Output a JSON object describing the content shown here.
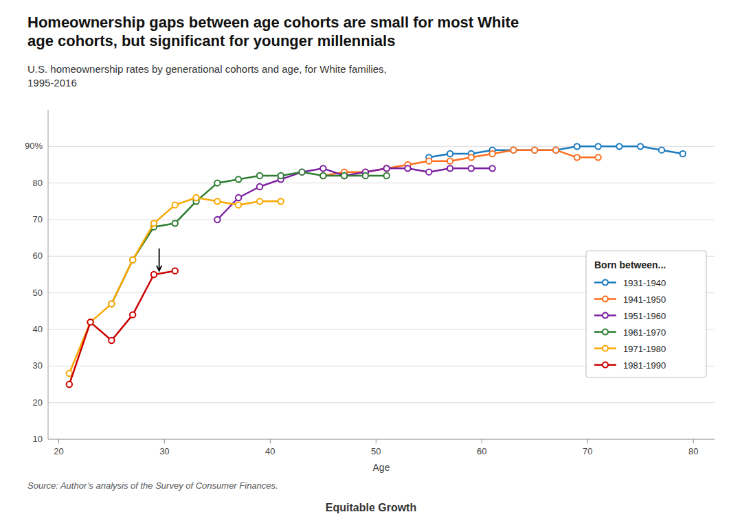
{
  "chart_data": {
    "type": "line",
    "title": "Homeownership gaps between age cohorts are small for most White\nage cohorts, but significant for younger millennials",
    "subtitle": "U.S. homeownership rates by generational cohorts and age, for White families,\n1995-2016",
    "xlabel": "Age",
    "source": "Source: Author’s analysis of the Survey of Consumer Finances.",
    "logo": "Equitable Growth",
    "legend_title": "Born between...",
    "legend": "right",
    "grid": true,
    "marker": "circle",
    "series": [
      {
        "name": "1931-1940",
        "color": "#1a7abf",
        "x": [
          55,
          57,
          59,
          61,
          63,
          65,
          67,
          69,
          71,
          73,
          75,
          77,
          79
        ],
        "values": [
          87,
          88,
          88,
          89,
          89,
          89,
          89,
          90,
          90,
          90,
          90,
          89,
          88
        ]
      },
      {
        "name": "1941-1950",
        "color": "#ff6e1f",
        "x": [
          45,
          47,
          49,
          51,
          53,
          55,
          57,
          59,
          61,
          63,
          65,
          67,
          69,
          71
        ],
        "values": [
          82,
          83,
          83,
          84,
          85,
          86,
          86,
          87,
          88,
          89,
          89,
          89,
          87,
          87
        ]
      },
      {
        "name": "1951-1960",
        "color": "#7b1fa2",
        "x": [
          35,
          37,
          39,
          41,
          43,
          45,
          47,
          49,
          51,
          53,
          55,
          57,
          59,
          61
        ],
        "values": [
          70,
          76,
          79,
          81,
          83,
          84,
          82,
          83,
          84,
          84,
          83,
          84,
          84,
          84
        ]
      },
      {
        "name": "1961-1970",
        "color": "#2e7d32",
        "x": [
          25,
          27,
          29,
          31,
          33,
          35,
          37,
          39,
          41,
          43,
          45,
          47,
          49,
          51
        ],
        "values": [
          47,
          59,
          68,
          69,
          75,
          80,
          81,
          82,
          82,
          83,
          82,
          82,
          82,
          82
        ]
      },
      {
        "name": "1971-1980",
        "color": "#f9a800",
        "x": [
          21,
          23,
          25,
          27,
          29,
          31,
          33,
          35,
          37,
          39,
          41
        ],
        "values": [
          28,
          42,
          47,
          59,
          69,
          74,
          76,
          75,
          74,
          75,
          75
        ]
      },
      {
        "name": "1981-1990",
        "color": "#cc0000",
        "x": [
          21,
          23,
          25,
          27,
          29,
          31
        ],
        "values": [
          25,
          42,
          37,
          44,
          55,
          56
        ]
      }
    ],
    "annotations": [
      {
        "type": "arrow",
        "x": 29.5,
        "y": 56,
        "x_from": 29.5,
        "y_from": 62
      }
    ],
    "xlim": [
      19,
      82
    ],
    "ylim": [
      10,
      100
    ],
    "xticks": [
      20,
      30,
      40,
      50,
      60,
      70,
      80
    ],
    "yticks": [
      10,
      20,
      30,
      40,
      50,
      60,
      70,
      80,
      {
        "value": 90,
        "label": "90%"
      }
    ]
  }
}
